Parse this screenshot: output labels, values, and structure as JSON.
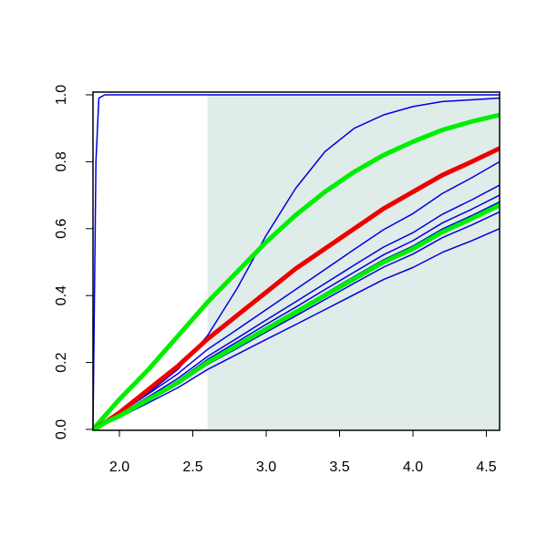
{
  "chart_data": {
    "type": "line",
    "x": [
      1.82,
      1.84,
      1.86,
      1.9,
      2.0,
      2.2,
      2.4,
      2.6,
      2.8,
      3.0,
      3.2,
      3.4,
      3.6,
      3.8,
      4.0,
      4.2,
      4.4,
      4.59
    ],
    "series": [
      {
        "color": "#0000dd",
        "width": 1.5,
        "values": [
          0,
          0.8,
          0.99,
          1,
          1,
          1,
          1,
          1,
          1,
          1,
          1,
          1,
          1,
          1,
          1,
          1,
          1,
          1
        ]
      },
      {
        "color": "#0000dd",
        "width": 1.5,
        "values": [
          0,
          0.004,
          0.008,
          0.02,
          0.05,
          0.11,
          0.18,
          0.28,
          0.42,
          0.58,
          0.72,
          0.83,
          0.9,
          0.94,
          0.965,
          0.98,
          0.985,
          0.99
        ]
      },
      {
        "color": "#0000dd",
        "width": 1.5,
        "values": [
          0,
          0.005,
          0.01,
          0.024,
          0.048,
          0.107,
          0.167,
          0.239,
          0.298,
          0.358,
          0.418,
          0.478,
          0.538,
          0.597,
          0.645,
          0.705,
          0.752,
          0.8
        ]
      },
      {
        "color": "#0000dd",
        "width": 1.5,
        "values": [
          0,
          0.004,
          0.009,
          0.022,
          0.044,
          0.098,
          0.153,
          0.218,
          0.272,
          0.327,
          0.381,
          0.436,
          0.491,
          0.545,
          0.588,
          0.643,
          0.686,
          0.73
        ]
      },
      {
        "color": "#0000dd",
        "width": 1.5,
        "values": [
          0,
          0.004,
          0.008,
          0.021,
          0.042,
          0.094,
          0.146,
          0.209,
          0.261,
          0.314,
          0.365,
          0.418,
          0.47,
          0.522,
          0.564,
          0.617,
          0.658,
          0.7
        ]
      },
      {
        "color": "#0000dd",
        "width": 1.5,
        "values": [
          0,
          0.004,
          0.008,
          0.02,
          0.041,
          0.091,
          0.142,
          0.203,
          0.254,
          0.305,
          0.355,
          0.406,
          0.457,
          0.507,
          0.548,
          0.599,
          0.639,
          0.68
        ]
      },
      {
        "color": "#0000dd",
        "width": 1.5,
        "values": [
          0,
          0.004,
          0.008,
          0.02,
          0.039,
          0.087,
          0.136,
          0.194,
          0.242,
          0.291,
          0.339,
          0.388,
          0.437,
          0.485,
          0.524,
          0.573,
          0.611,
          0.65
        ]
      },
      {
        "color": "#0000dd",
        "width": 1.5,
        "values": [
          0,
          0.004,
          0.007,
          0.018,
          0.036,
          0.08,
          0.125,
          0.179,
          0.224,
          0.269,
          0.313,
          0.358,
          0.403,
          0.448,
          0.484,
          0.529,
          0.564,
          0.6
        ]
      },
      {
        "color": "#00ee00",
        "width": 5,
        "values": [
          0,
          0.01,
          0.02,
          0.04,
          0.09,
          0.18,
          0.28,
          0.38,
          0.47,
          0.56,
          0.64,
          0.71,
          0.77,
          0.82,
          0.86,
          0.895,
          0.92,
          0.94
        ]
      },
      {
        "color": "#ee0000",
        "width": 5,
        "values": [
          0,
          0.005,
          0.01,
          0.02,
          0.05,
          0.12,
          0.19,
          0.27,
          0.34,
          0.41,
          0.48,
          0.54,
          0.6,
          0.66,
          0.71,
          0.76,
          0.8,
          0.84
        ]
      },
      {
        "color": "#00ee00",
        "width": 5,
        "values": [
          0,
          0.004,
          0.008,
          0.02,
          0.04,
          0.09,
          0.14,
          0.2,
          0.25,
          0.3,
          0.35,
          0.4,
          0.45,
          0.5,
          0.54,
          0.59,
          0.63,
          0.67
        ]
      }
    ],
    "shade": {
      "xmin": 2.6,
      "ymin": 0,
      "ymax": 1,
      "color": "#e0ecea"
    },
    "xlim": [
      1.82,
      4.59
    ],
    "ylim": [
      0,
      1
    ],
    "xticks": [
      {
        "value": 2.0,
        "label": "2.0"
      },
      2.5,
      {
        "value": 3.0,
        "label": "3.0"
      },
      3.5,
      {
        "value": 4.0,
        "label": "4.0"
      },
      4.5
    ],
    "yticks": [
      {
        "value": 0.0,
        "label": "0.0"
      },
      0.2,
      0.4,
      0.6,
      0.8,
      {
        "value": 1.0,
        "label": "1.0"
      }
    ]
  }
}
